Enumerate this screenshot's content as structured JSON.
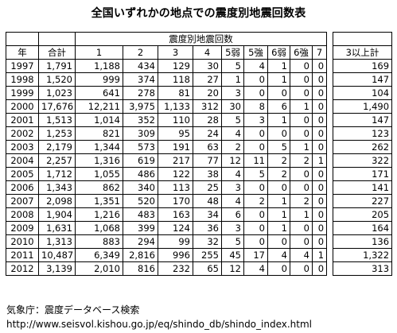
{
  "title": "全国いずれかの地点での震度別地震回数表",
  "headers": {
    "year": "年",
    "total": "合計",
    "intensity_group": "震度別地震回数",
    "intensities": [
      "1",
      "2",
      "3",
      "4",
      "5弱",
      "5強",
      "6弱",
      "6強",
      "7"
    ],
    "three_plus": "3以上計"
  },
  "rows": [
    {
      "year": "1997",
      "total": "1,791",
      "counts": [
        "1,188",
        "434",
        "129",
        "30",
        "5",
        "4",
        "1",
        "0",
        "0"
      ],
      "three_plus": "169"
    },
    {
      "year": "1998",
      "total": "1,520",
      "counts": [
        "999",
        "374",
        "118",
        "27",
        "1",
        "0",
        "1",
        "0",
        "0"
      ],
      "three_plus": "147"
    },
    {
      "year": "1999",
      "total": "1,023",
      "counts": [
        "641",
        "278",
        "81",
        "20",
        "3",
        "0",
        "0",
        "0",
        "0"
      ],
      "three_plus": "104"
    },
    {
      "year": "2000",
      "total": "17,676",
      "counts": [
        "12,211",
        "3,975",
        "1,133",
        "312",
        "30",
        "8",
        "6",
        "1",
        "0"
      ],
      "three_plus": "1,490"
    },
    {
      "year": "2001",
      "total": "1,513",
      "counts": [
        "1,014",
        "352",
        "110",
        "28",
        "5",
        "3",
        "1",
        "0",
        "0"
      ],
      "three_plus": "147"
    },
    {
      "year": "2002",
      "total": "1,253",
      "counts": [
        "821",
        "309",
        "95",
        "24",
        "4",
        "0",
        "0",
        "0",
        "0"
      ],
      "three_plus": "123"
    },
    {
      "year": "2003",
      "total": "2,179",
      "counts": [
        "1,344",
        "573",
        "191",
        "63",
        "2",
        "0",
        "5",
        "1",
        "0"
      ],
      "three_plus": "262"
    },
    {
      "year": "2004",
      "total": "2,257",
      "counts": [
        "1,316",
        "619",
        "217",
        "77",
        "12",
        "11",
        "2",
        "2",
        "1"
      ],
      "three_plus": "322"
    },
    {
      "year": "2005",
      "total": "1,712",
      "counts": [
        "1,055",
        "486",
        "122",
        "38",
        "4",
        "5",
        "2",
        "0",
        "0"
      ],
      "three_plus": "171"
    },
    {
      "year": "2006",
      "total": "1,343",
      "counts": [
        "862",
        "340",
        "113",
        "25",
        "3",
        "0",
        "0",
        "0",
        "0"
      ],
      "three_plus": "141"
    },
    {
      "year": "2007",
      "total": "2,098",
      "counts": [
        "1,351",
        "520",
        "170",
        "48",
        "4",
        "2",
        "1",
        "2",
        "0"
      ],
      "three_plus": "227"
    },
    {
      "year": "2008",
      "total": "1,904",
      "counts": [
        "1,216",
        "483",
        "163",
        "34",
        "6",
        "0",
        "1",
        "1",
        "0"
      ],
      "three_plus": "205"
    },
    {
      "year": "2009",
      "total": "1,631",
      "counts": [
        "1,068",
        "399",
        "124",
        "36",
        "3",
        "0",
        "1",
        "0",
        "0"
      ],
      "three_plus": "164"
    },
    {
      "year": "2010",
      "total": "1,313",
      "counts": [
        "883",
        "294",
        "99",
        "32",
        "5",
        "0",
        "0",
        "0",
        "0"
      ],
      "three_plus": "136"
    },
    {
      "year": "2011",
      "total": "10,487",
      "counts": [
        "6,349",
        "2,816",
        "996",
        "255",
        "45",
        "17",
        "4",
        "4",
        "1"
      ],
      "three_plus": "1,322"
    },
    {
      "year": "2012",
      "total": "3,139",
      "counts": [
        "2,010",
        "816",
        "232",
        "65",
        "12",
        "4",
        "0",
        "0",
        "0"
      ],
      "three_plus": "313"
    }
  ],
  "footer": {
    "source": "気象庁：震度データベース検索",
    "url": "http://www.seisvol.kishou.go.jp/eq/shindo_db/shindo_index.html"
  }
}
